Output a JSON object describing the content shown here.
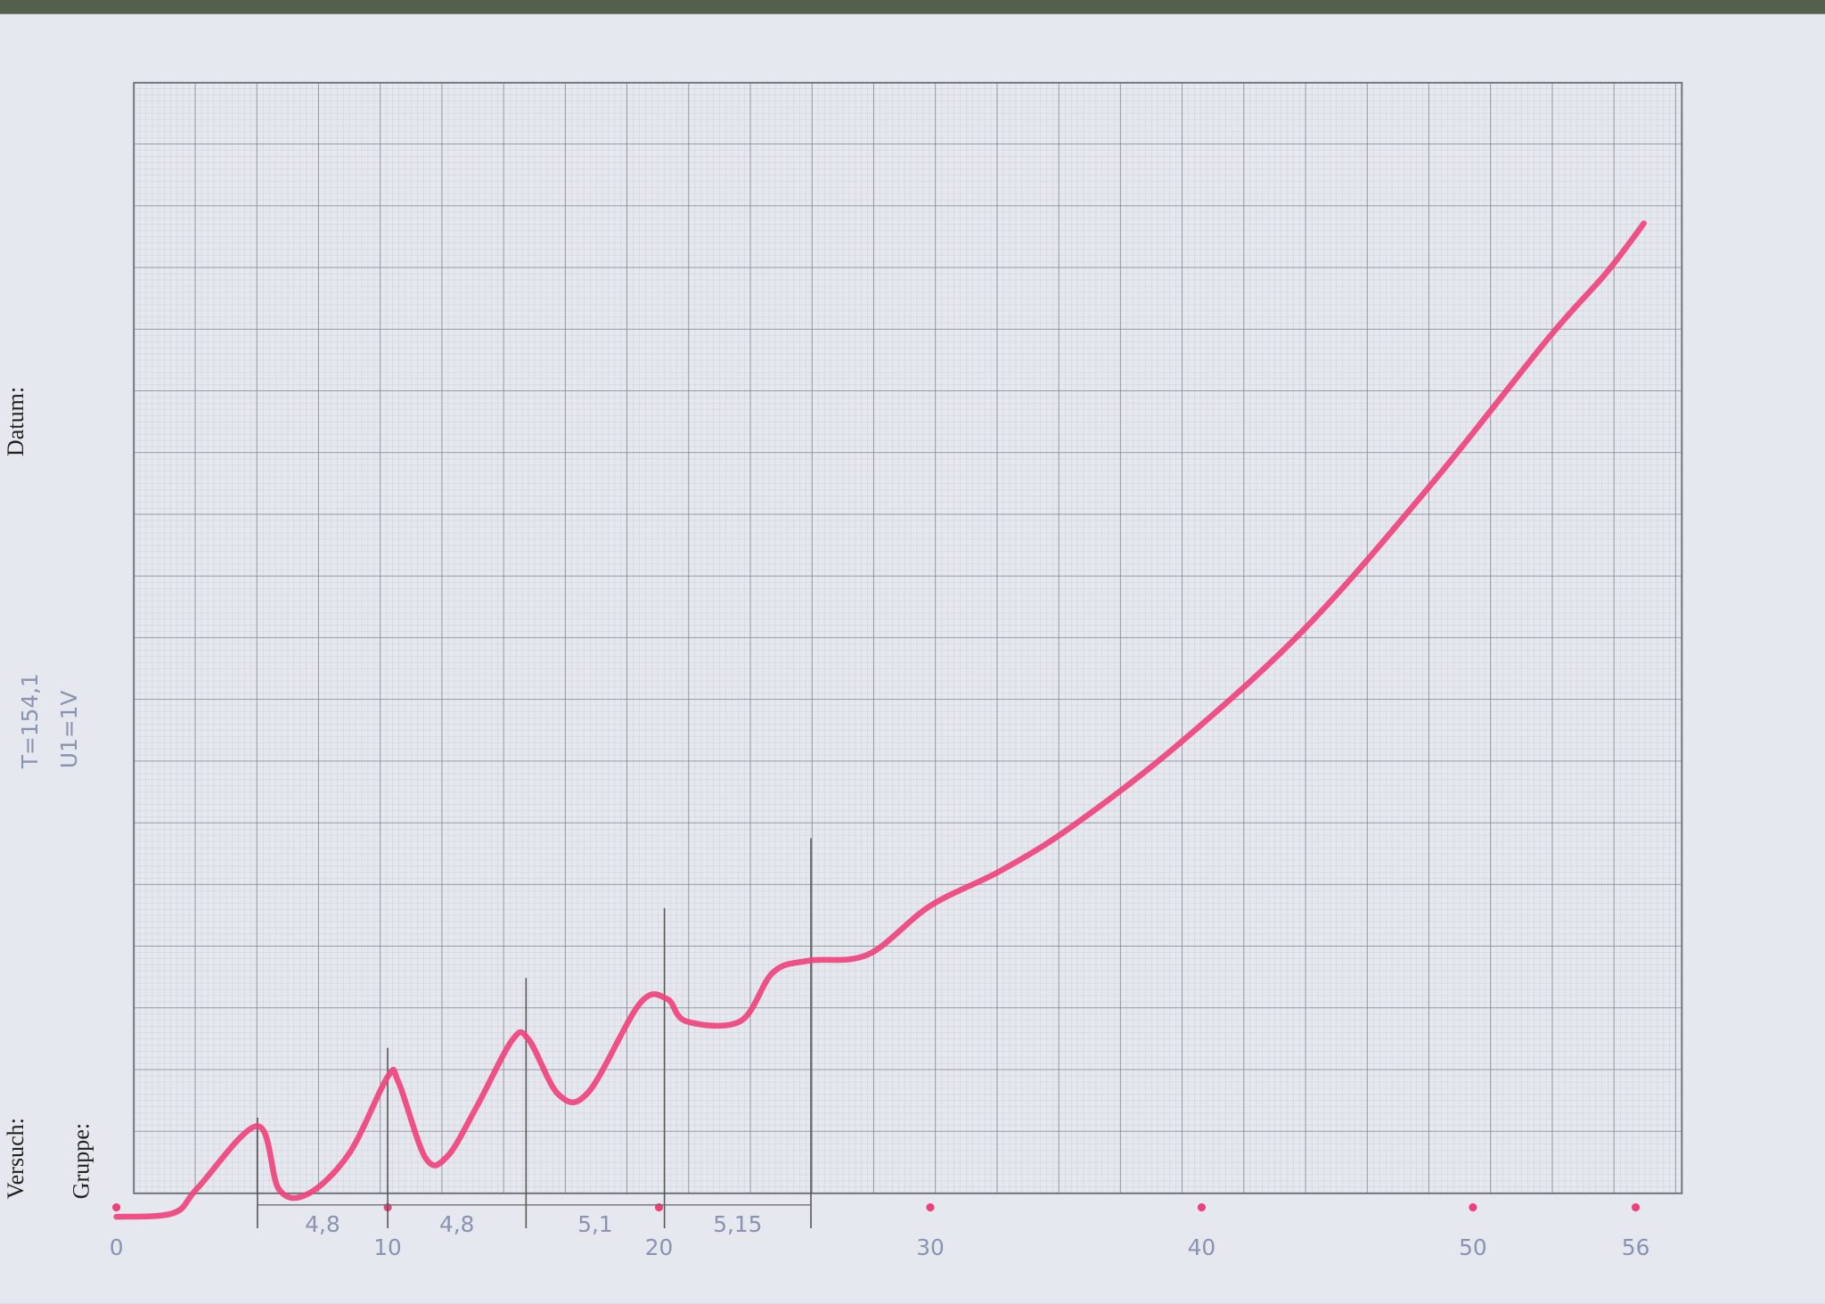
{
  "chart_data": {
    "type": "line",
    "x": [
      0,
      2.1,
      3.0,
      5.2,
      6.0,
      7.1,
      8.6,
      10.0,
      10.4,
      11.4,
      12.2,
      13.3,
      14.6,
      15.2,
      16.3,
      17.4,
      19.3,
      20.3,
      21.0,
      23.0,
      24.2,
      25.5,
      27.7,
      30.0,
      32.6,
      35.2,
      39.1,
      43.8,
      48.5,
      52.8,
      54.9,
      56.3
    ],
    "values": [
      -0.38,
      -0.32,
      0.09,
      1.09,
      0.06,
      0,
      0.66,
      1.89,
      1.8,
      0.57,
      0.6,
      1.42,
      2.49,
      2.49,
      1.6,
      1.64,
      3.08,
      3.15,
      2.79,
      2.79,
      3.58,
      3.77,
      3.87,
      4.66,
      5.23,
      5.94,
      7.26,
      9.15,
      11.51,
      13.87,
      14.91,
      15.72
    ],
    "color": "#f0407a",
    "xlim": [
      0,
      57.7
    ],
    "xticks": [
      0,
      10,
      20,
      30,
      40,
      50,
      56
    ],
    "ylim": [
      -0.5,
      18
    ],
    "peak_markers": [
      5.2,
      10.0,
      15.1,
      20.2,
      25.6
    ],
    "spacing_labels": [
      "4,8",
      "4,8",
      "5,1",
      "5,15"
    ],
    "form_labels": {
      "versuch": "Versuch:",
      "gruppe": "Gruppe:",
      "datum": "Datum:"
    },
    "notes": [
      "T=154,1",
      "U1=1V"
    ]
  }
}
